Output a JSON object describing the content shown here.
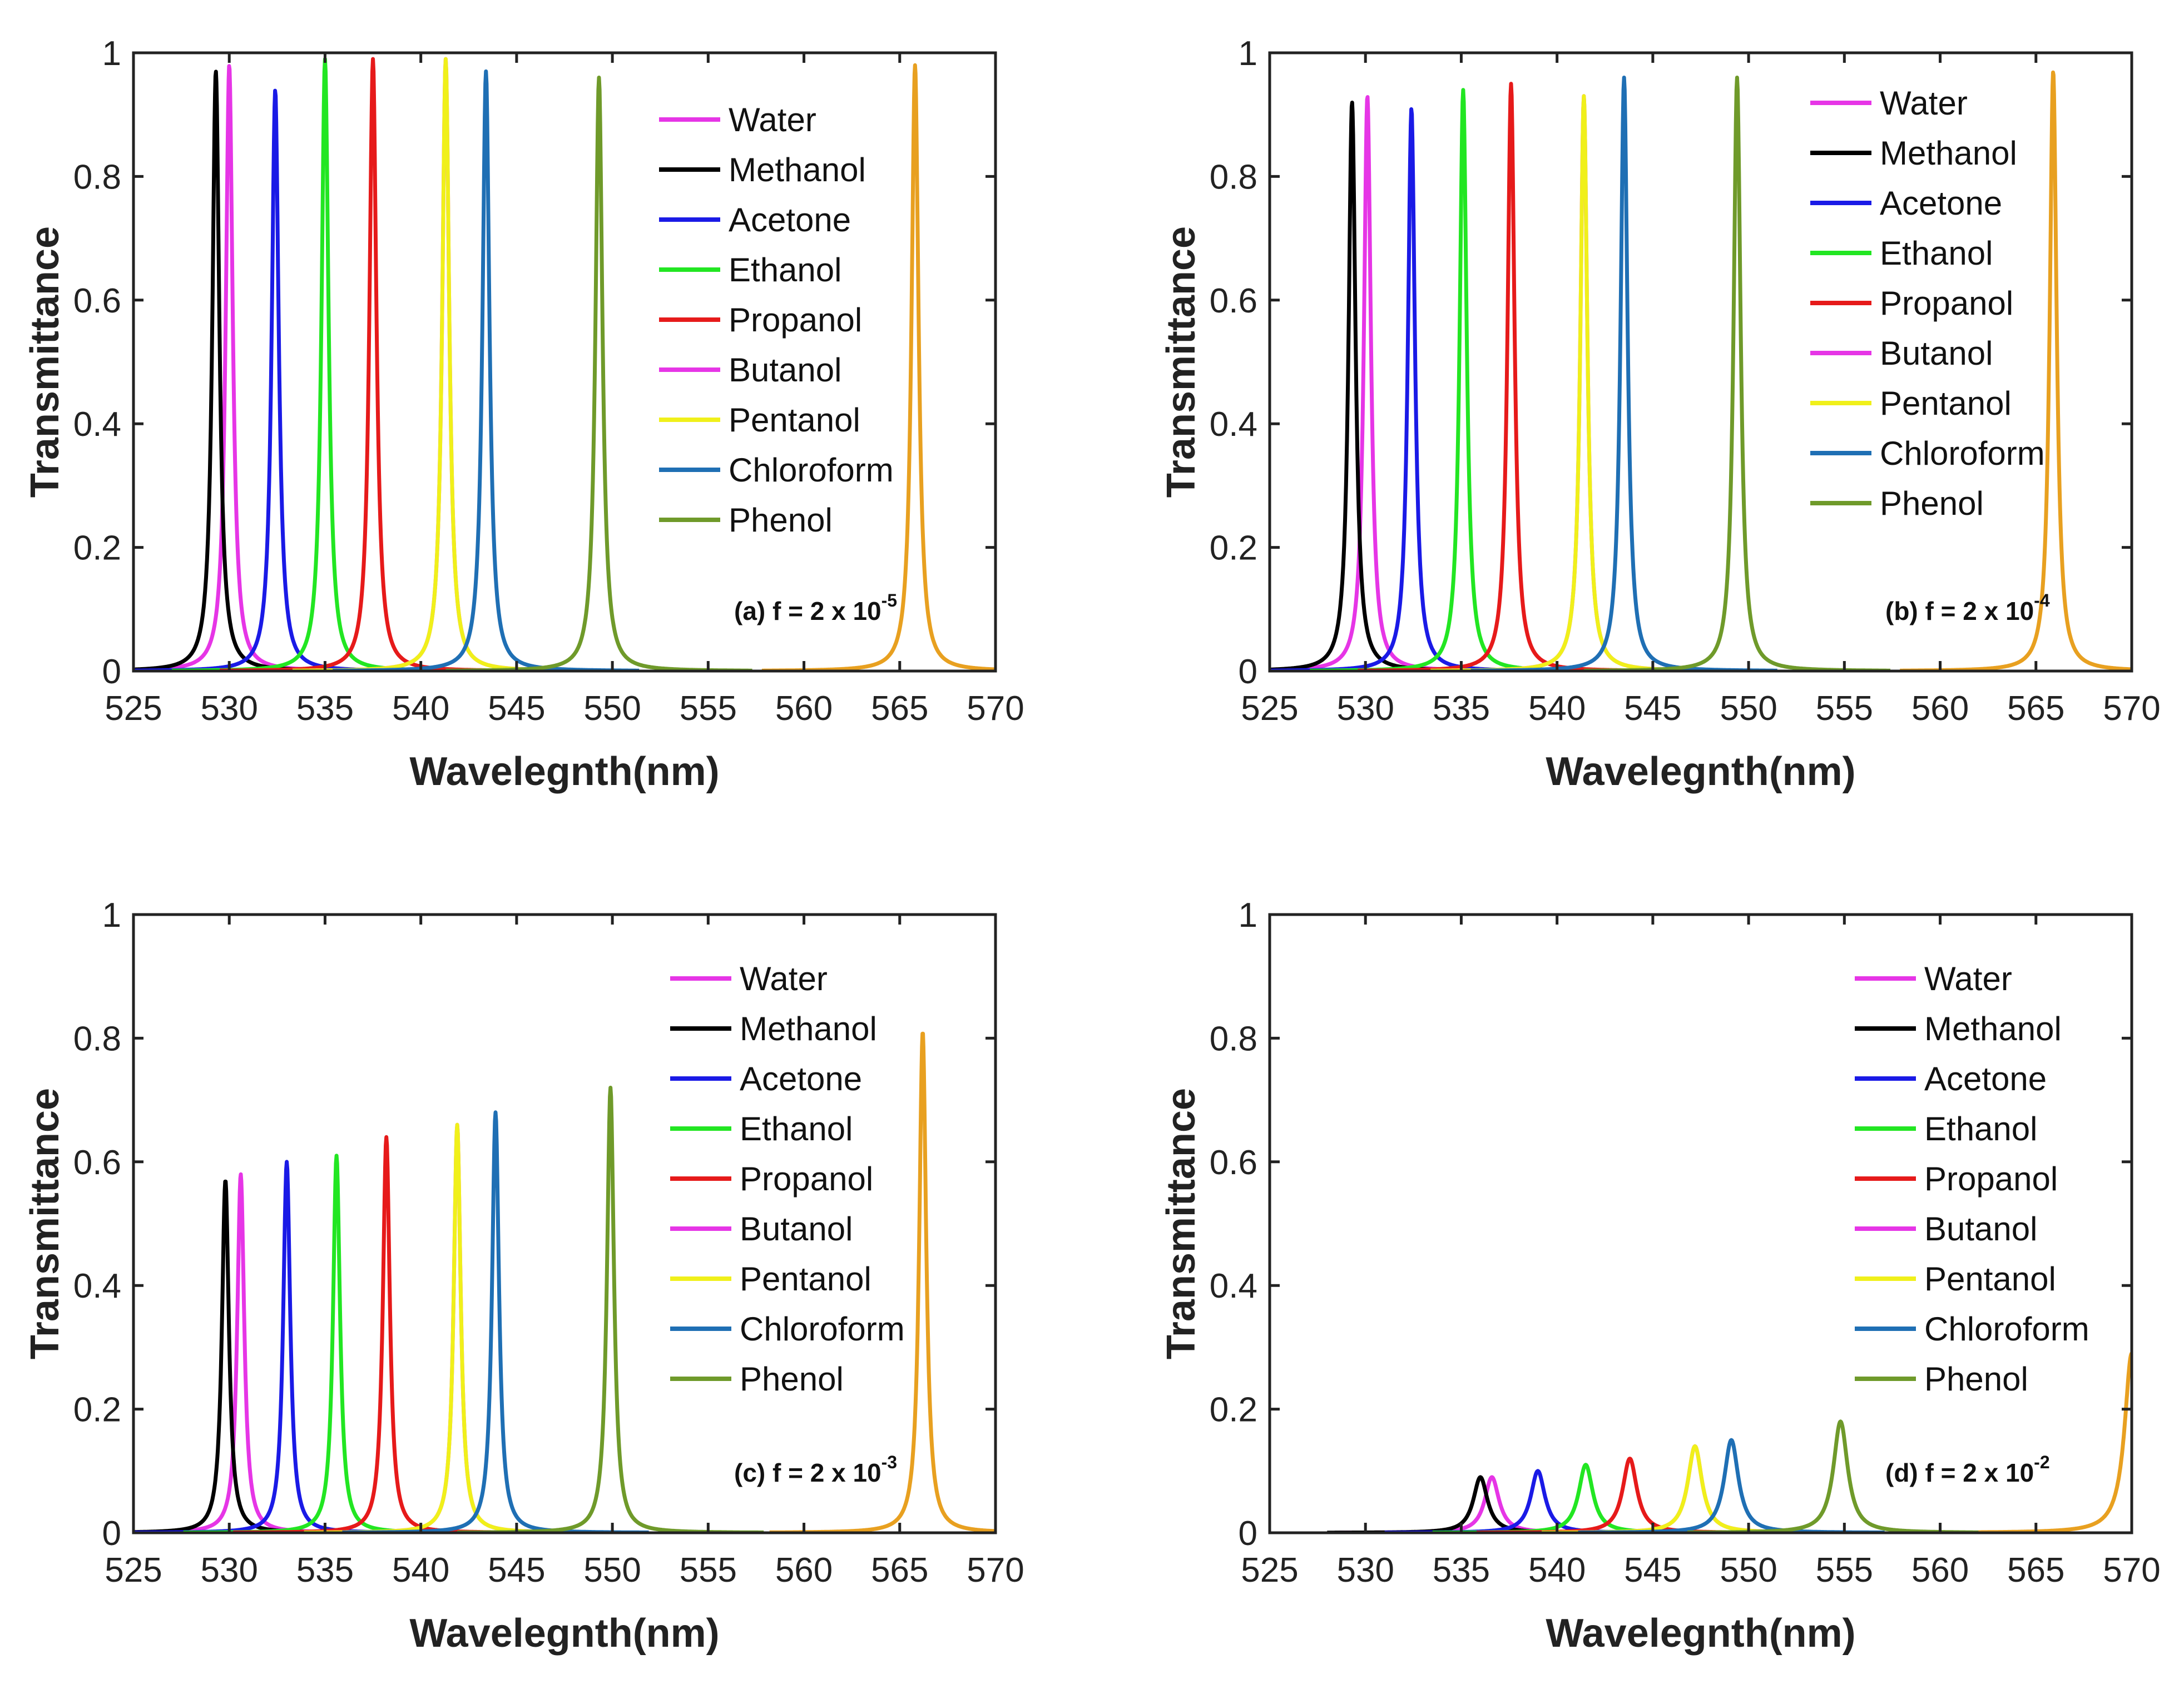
{
  "chart_data": [
    {
      "type": "line",
      "panel": "a",
      "annotation": {
        "prefix": "(a) f = 2 x 10",
        "exponent": "-5"
      },
      "xlabel": "Wavelegnth(nm)",
      "ylabel": "Transmittance",
      "xlim": [
        525,
        570
      ],
      "ylim": [
        0,
        1
      ],
      "xticks": [
        525,
        530,
        535,
        540,
        545,
        550,
        555,
        560,
        565,
        570
      ],
      "yticks": [
        0,
        0.2,
        0.4,
        0.6,
        0.8,
        1
      ],
      "legend": {
        "position": "top-right"
      },
      "series": [
        {
          "name": "Water",
          "color": "#e635e6",
          "peak_x": 530.0,
          "peak_y": 0.98
        },
        {
          "name": "Methanol",
          "color": "#000000",
          "peak_x": 529.3,
          "peak_y": 0.97
        },
        {
          "name": "Acetone",
          "color": "#1a1ae6",
          "peak_x": 532.4,
          "peak_y": 0.94
        },
        {
          "name": "Ethanol",
          "color": "#22e622",
          "peak_x": 535.0,
          "peak_y": 0.99
        },
        {
          "name": "Propanol",
          "color": "#e61a1a",
          "peak_x": 537.5,
          "peak_y": 0.99
        },
        {
          "name": "Butanol",
          "color": "#e635e6",
          "peak_x": 541.3,
          "peak_y": 0.99
        },
        {
          "name": "Pentanol",
          "color": "#f0f01a",
          "peak_x": 541.3,
          "peak_y": 0.99
        },
        {
          "name": "Chloroform",
          "color": "#1f6fb4",
          "peak_x": 543.4,
          "peak_y": 0.97
        },
        {
          "name": "Phenol",
          "color": "#6f9a2a",
          "peak_x": 549.3,
          "peak_y": 0.96
        },
        {
          "name": "",
          "color": "#e8a020",
          "peak_x": 565.8,
          "peak_y": 0.98
        }
      ]
    },
    {
      "type": "line",
      "panel": "b",
      "annotation": {
        "prefix": "(b) f = 2 x 10",
        "exponent": "-4"
      },
      "xlabel": "Wavelegnth(nm)",
      "ylabel": "Transmittance",
      "xlim": [
        525,
        570
      ],
      "ylim": [
        0,
        1
      ],
      "xticks": [
        525,
        530,
        535,
        540,
        545,
        550,
        555,
        560,
        565,
        570
      ],
      "yticks": [
        0,
        0.2,
        0.4,
        0.6,
        0.8,
        1
      ],
      "legend": {
        "position": "top-right"
      },
      "series": [
        {
          "name": "Water",
          "color": "#e635e6",
          "peak_x": 530.1,
          "peak_y": 0.93
        },
        {
          "name": "Methanol",
          "color": "#000000",
          "peak_x": 529.3,
          "peak_y": 0.92
        },
        {
          "name": "Acetone",
          "color": "#1a1ae6",
          "peak_x": 532.4,
          "peak_y": 0.91
        },
        {
          "name": "Ethanol",
          "color": "#22e622",
          "peak_x": 535.1,
          "peak_y": 0.94
        },
        {
          "name": "Propanol",
          "color": "#e61a1a",
          "peak_x": 537.6,
          "peak_y": 0.95
        },
        {
          "name": "Butanol",
          "color": "#e635e6",
          "peak_x": 541.4,
          "peak_y": 0.93
        },
        {
          "name": "Pentanol",
          "color": "#f0f01a",
          "peak_x": 541.4,
          "peak_y": 0.93
        },
        {
          "name": "Chloroform",
          "color": "#1f6fb4",
          "peak_x": 543.5,
          "peak_y": 0.96
        },
        {
          "name": "Phenol",
          "color": "#6f9a2a",
          "peak_x": 549.4,
          "peak_y": 0.96
        },
        {
          "name": "",
          "color": "#e8a020",
          "peak_x": 565.9,
          "peak_y": 0.97
        }
      ]
    },
    {
      "type": "line",
      "panel": "c",
      "annotation": {
        "prefix": "(c) f = 2 x 10",
        "exponent": "-3"
      },
      "xlabel": "Wavelegnth(nm)",
      "ylabel": "Transmittance",
      "xlim": [
        525,
        570
      ],
      "ylim": [
        0,
        1
      ],
      "xticks": [
        525,
        530,
        535,
        540,
        545,
        550,
        555,
        560,
        565,
        570
      ],
      "yticks": [
        0,
        0.2,
        0.4,
        0.6,
        0.8,
        1
      ],
      "legend": {
        "position": "top-right"
      },
      "series": [
        {
          "name": "Water",
          "color": "#e635e6",
          "peak_x": 530.6,
          "peak_y": 0.58
        },
        {
          "name": "Methanol",
          "color": "#000000",
          "peak_x": 529.8,
          "peak_y": 0.57
        },
        {
          "name": "Acetone",
          "color": "#1a1ae6",
          "peak_x": 533.0,
          "peak_y": 0.6
        },
        {
          "name": "Ethanol",
          "color": "#22e622",
          "peak_x": 535.6,
          "peak_y": 0.61
        },
        {
          "name": "Propanol",
          "color": "#e61a1a",
          "peak_x": 538.2,
          "peak_y": 0.64
        },
        {
          "name": "Butanol",
          "color": "#e635e6",
          "peak_x": 541.9,
          "peak_y": 0.66
        },
        {
          "name": "Pentanol",
          "color": "#f0f01a",
          "peak_x": 541.9,
          "peak_y": 0.66
        },
        {
          "name": "Chloroform",
          "color": "#1f6fb4",
          "peak_x": 543.9,
          "peak_y": 0.68
        },
        {
          "name": "Phenol",
          "color": "#6f9a2a",
          "peak_x": 549.9,
          "peak_y": 0.72
        },
        {
          "name": "",
          "color": "#e8a020",
          "peak_x": 566.2,
          "peak_y": 0.81
        }
      ]
    },
    {
      "type": "line",
      "panel": "d",
      "annotation": {
        "prefix": "(d) f = 2 x 10",
        "exponent": "-2"
      },
      "xlabel": "Wavelegnth(nm)",
      "ylabel": "Transmittance",
      "xlim": [
        525,
        570
      ],
      "ylim": [
        0,
        1
      ],
      "xticks": [
        525,
        530,
        535,
        540,
        545,
        550,
        555,
        560,
        565,
        570
      ],
      "yticks": [
        0,
        0.2,
        0.4,
        0.6,
        0.8,
        1
      ],
      "legend": {
        "position": "top-right"
      },
      "series": [
        {
          "name": "Water",
          "color": "#e635e6",
          "peak_x": 536.6,
          "peak_y": 0.09
        },
        {
          "name": "Methanol",
          "color": "#000000",
          "peak_x": 536.0,
          "peak_y": 0.09
        },
        {
          "name": "Acetone",
          "color": "#1a1ae6",
          "peak_x": 539.0,
          "peak_y": 0.1
        },
        {
          "name": "Ethanol",
          "color": "#22e622",
          "peak_x": 541.5,
          "peak_y": 0.11
        },
        {
          "name": "Propanol",
          "color": "#e61a1a",
          "peak_x": 543.8,
          "peak_y": 0.12
        },
        {
          "name": "Butanol",
          "color": "#e635e6",
          "peak_x": 547.2,
          "peak_y": 0.14
        },
        {
          "name": "Pentanol",
          "color": "#f0f01a",
          "peak_x": 547.2,
          "peak_y": 0.14
        },
        {
          "name": "Chloroform",
          "color": "#1f6fb4",
          "peak_x": 549.1,
          "peak_y": 0.15
        },
        {
          "name": "Phenol",
          "color": "#6f9a2a",
          "peak_x": 554.8,
          "peak_y": 0.18
        },
        {
          "name": "",
          "color": "#e8a020",
          "peak_x": 570.0,
          "peak_y": 0.29
        }
      ]
    }
  ]
}
